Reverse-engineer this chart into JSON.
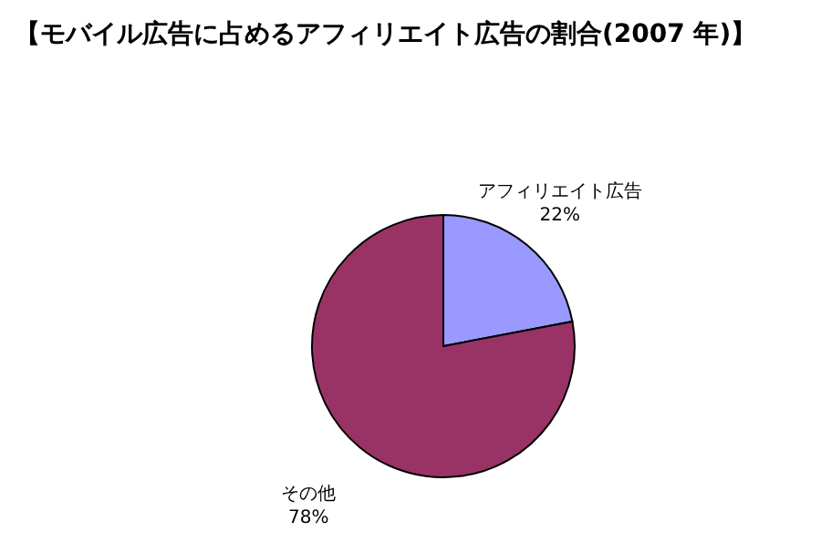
{
  "chart_data": {
    "type": "pie",
    "title": "【モバイル広告に占めるアフィリエイト広告の割合(2007 年)】",
    "categories": [
      "アフィリエイト広告",
      "その他"
    ],
    "values": [
      22,
      78
    ],
    "colors": [
      "#9999ff",
      "#993366"
    ],
    "value_labels": [
      "22%",
      "78%"
    ]
  }
}
